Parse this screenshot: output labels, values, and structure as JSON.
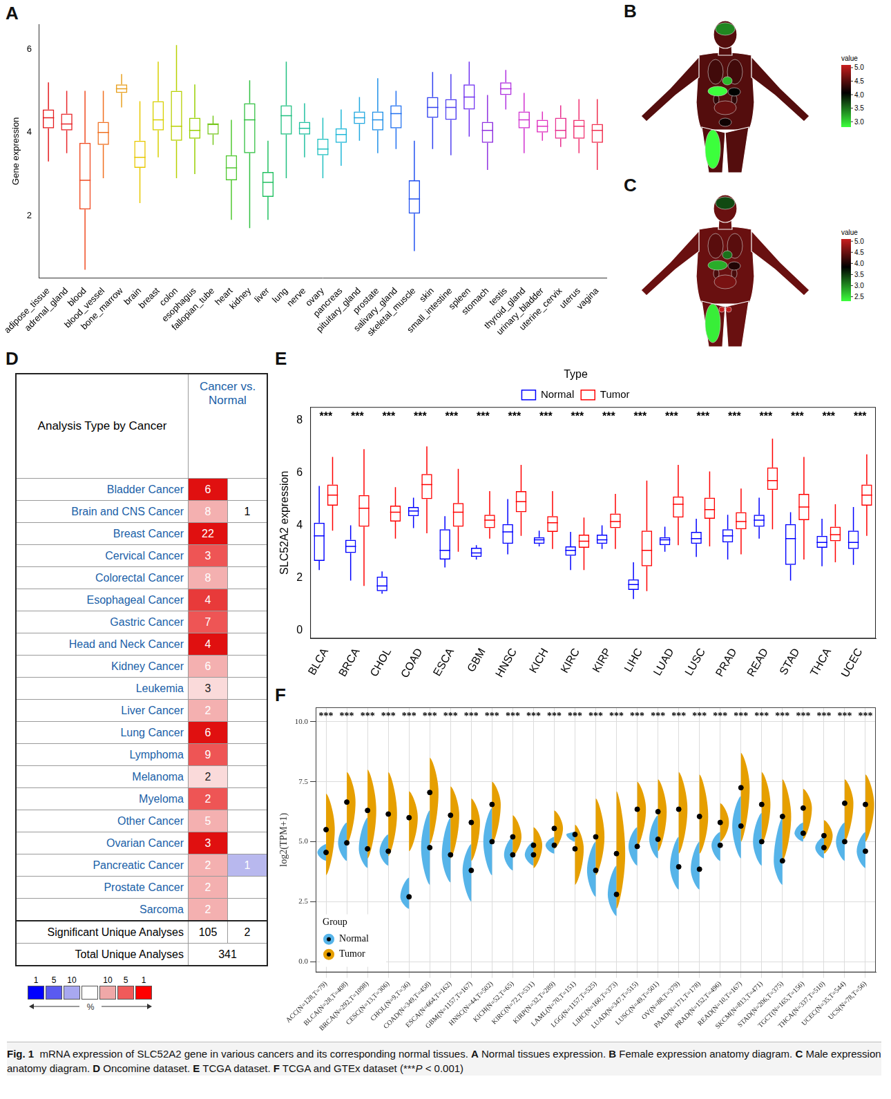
{
  "chart_data": [
    {
      "panel": "A",
      "type": "boxplot",
      "y_label": "Gene expression",
      "categories": [
        "adipose_tissue",
        "adrenal_gland",
        "blood",
        "blood_vessel",
        "bone_marrow",
        "brain",
        "breast",
        "colon",
        "esophagus",
        "fallopian_tube",
        "heart",
        "kidney",
        "liver",
        "lung",
        "nerve",
        "ovary",
        "pancreas",
        "pituitary_gland",
        "prostate",
        "salivary_gland",
        "skeletal_muscle",
        "skin",
        "small_intestine",
        "spleen",
        "stomach",
        "testis",
        "thyroid_gland",
        "urinary_bladder",
        "uterine_cervix",
        "uterus",
        "vagina"
      ],
      "colors": [
        "#e41a1c",
        "#e8262a",
        "#f04a20",
        "#f07020",
        "#e8a020",
        "#e8c800",
        "#d8d000",
        "#b8d000",
        "#98d000",
        "#78c820",
        "#50c830",
        "#30c040",
        "#20c060",
        "#20c080",
        "#20c0a0",
        "#20c0c0",
        "#20b8d8",
        "#20a8e0",
        "#2090e8",
        "#2070f0",
        "#2050f0",
        "#3040f0",
        "#5040f0",
        "#7030f0",
        "#9030e0",
        "#b030e0",
        "#d030d0",
        "#e030c0",
        "#e83090",
        "#f03070",
        "#f03050"
      ],
      "min": [
        3.3,
        3.5,
        0.7,
        2.9,
        4.6,
        2.3,
        3.4,
        2.9,
        3.0,
        3.7,
        1.9,
        1.7,
        1.9,
        2.9,
        3.4,
        2.9,
        3.2,
        3.8,
        3.5,
        3.6,
        1.15,
        3.6,
        3.45,
        3.9,
        3.1,
        4.55,
        3.5,
        3.8,
        3.65,
        3.5,
        3.1
      ],
      "q1": [
        4.1,
        4.05,
        2.15,
        3.7,
        4.95,
        3.15,
        4.05,
        3.8,
        3.85,
        3.95,
        2.85,
        3.5,
        2.45,
        3.95,
        3.95,
        3.45,
        3.75,
        4.2,
        4.05,
        4.1,
        2.05,
        4.35,
        4.3,
        4.55,
        3.75,
        4.9,
        4.1,
        4.0,
        3.85,
        3.85,
        3.75
      ],
      "median": [
        4.35,
        4.2,
        2.85,
        4.0,
        5.05,
        3.4,
        4.3,
        4.15,
        4.05,
        4.2,
        3.15,
        4.3,
        2.8,
        4.4,
        4.1,
        3.6,
        3.95,
        4.35,
        4.3,
        4.45,
        2.4,
        4.6,
        4.6,
        4.85,
        4.05,
        5.05,
        4.3,
        4.15,
        4.05,
        4.15,
        4.05
      ],
      "q3": [
        4.55,
        4.45,
        3.75,
        4.25,
        5.15,
        3.8,
        4.75,
        5.0,
        4.35,
        4.2,
        3.45,
        4.7,
        3.05,
        4.65,
        4.25,
        3.85,
        4.1,
        4.5,
        4.5,
        4.65,
        2.85,
        4.85,
        4.8,
        5.15,
        4.25,
        5.2,
        4.5,
        4.3,
        4.35,
        4.3,
        4.2
      ],
      "max": [
        5.2,
        5.0,
        5.0,
        5.0,
        5.4,
        4.75,
        5.7,
        6.1,
        5.15,
        4.4,
        4.3,
        5.25,
        3.8,
        5.7,
        4.7,
        4.35,
        4.55,
        4.85,
        5.3,
        5.0,
        3.8,
        5.45,
        5.4,
        5.7,
        4.9,
        5.5,
        4.95,
        4.5,
        4.65,
        4.8,
        4.8
      ],
      "ylim": [
        0.5,
        6.6
      ],
      "yticks": [
        2,
        4,
        6
      ],
      "grid": false
    },
    {
      "panel": "E",
      "type": "boxplot",
      "y_label": "SLC52A2 expression",
      "legend": "top",
      "legend_title": "Type",
      "grid": false,
      "categories": [
        "BLCA",
        "BRCA",
        "CHOL",
        "COAD",
        "ESCA",
        "GBM",
        "HNSC",
        "KICH",
        "KIRC",
        "KIRP",
        "LIHC",
        "LUAD",
        "LUSC",
        "PRAD",
        "READ",
        "STAD",
        "THCA",
        "UCEC"
      ],
      "significance": [
        "***",
        "***",
        "***",
        "***",
        "***",
        "***",
        "***",
        "***",
        "***",
        "***",
        "***",
        "***",
        "***",
        "***",
        "***",
        "***",
        "***",
        "***"
      ],
      "series": [
        {
          "name": "Normal",
          "color": "#0000ff",
          "min": [
            2.3,
            1.9,
            1.4,
            3.9,
            2.4,
            2.7,
            2.9,
            3.2,
            2.3,
            3.1,
            1.2,
            3.0,
            2.8,
            2.7,
            3.5,
            1.9,
            2.45,
            2.5
          ],
          "q1": [
            2.65,
            2.95,
            1.5,
            4.35,
            2.7,
            2.8,
            3.3,
            3.3,
            2.85,
            3.3,
            1.55,
            3.25,
            3.3,
            3.35,
            3.95,
            2.5,
            3.15,
            3.1
          ],
          "median": [
            3.6,
            3.2,
            1.7,
            4.55,
            3.05,
            2.95,
            3.75,
            3.45,
            3.05,
            3.45,
            1.75,
            3.45,
            3.5,
            3.6,
            4.2,
            3.5,
            3.35,
            3.35
          ],
          "q3": [
            4.1,
            3.45,
            2.05,
            4.7,
            3.85,
            3.15,
            4.05,
            3.55,
            3.2,
            3.65,
            1.95,
            3.55,
            3.75,
            3.85,
            4.4,
            4.05,
            3.6,
            3.8
          ],
          "max": [
            5.5,
            4.0,
            2.25,
            5.05,
            4.35,
            3.25,
            5.0,
            3.8,
            3.75,
            4.0,
            2.6,
            3.95,
            4.25,
            4.4,
            5.05,
            4.5,
            4.25,
            4.7
          ]
        },
        {
          "name": "Tumor",
          "color": "#ff0000",
          "min": [
            3.8,
            1.7,
            3.5,
            3.7,
            3.0,
            3.5,
            3.6,
            3.1,
            2.3,
            3.1,
            1.5,
            3.25,
            3.2,
            2.9,
            3.85,
            2.7,
            2.6,
            3.6
          ],
          "q1": [
            4.75,
            3.95,
            4.15,
            5.0,
            3.95,
            3.9,
            4.5,
            3.75,
            3.15,
            3.9,
            2.45,
            4.3,
            4.25,
            3.85,
            5.35,
            4.2,
            3.4,
            4.75
          ],
          "median": [
            5.15,
            4.65,
            4.5,
            5.55,
            4.5,
            4.2,
            4.9,
            4.1,
            3.4,
            4.15,
            3.05,
            4.8,
            4.6,
            4.15,
            5.7,
            4.7,
            3.65,
            5.15
          ],
          "q3": [
            5.55,
            5.15,
            4.75,
            5.95,
            4.85,
            4.4,
            5.3,
            4.35,
            3.65,
            4.45,
            3.8,
            5.1,
            5.05,
            4.5,
            6.2,
            5.2,
            3.95,
            5.55
          ],
          "max": [
            6.6,
            6.9,
            5.45,
            7.0,
            6.15,
            5.3,
            6.3,
            5.3,
            4.3,
            5.2,
            5.7,
            6.3,
            6.05,
            5.4,
            7.3,
            6.6,
            4.8,
            6.7
          ]
        }
      ],
      "ylim": [
        -0.3,
        8.5
      ],
      "yticks": [
        0,
        2,
        4,
        6,
        8
      ]
    },
    {
      "panel": "F",
      "type": "violin",
      "y_label": "log2(TPM+1)",
      "legend": "lower left",
      "legend_title": "Group",
      "grid": true,
      "categories": [
        "ACC(N=128,T=79)",
        "BLCA(N=28,T=408)",
        "BRCA(N=292,T=1098)",
        "CESC(N=13,T=306)",
        "CHOL(N=9,T=36)",
        "COAD(N=349,T=458)",
        "ESCA(N=664,T=162)",
        "GBM(N=1157,T=167)",
        "HNSC(N=44,T=502)",
        "KICH(N=52,T=65)",
        "KIRC(N=72,T=531)",
        "KIRP(N=32,T=289)",
        "LAML(N=70,T=151)",
        "LGG(N=1157,T=525)",
        "LIHC(N=160,T=373)",
        "LUAD(N=347,T=515)",
        "LUSC(N=49,T=501)",
        "OV(N=88,T=379)",
        "PAAD(N=171,T=178)",
        "PRAD(N=152,T=496)",
        "READ(N=10,T=167)",
        "SKCM(N=813,T=471)",
        "STAD(N=206,T=375)",
        "TGCT(N=165,T=156)",
        "THCA(N=337,T=510)",
        "UCEC(N=35,T=544)",
        "UCS(N=78,T=56)"
      ],
      "significance": [
        "***",
        "***",
        "***",
        "***",
        "***",
        "***",
        "***",
        "***",
        "***",
        "***",
        "***",
        "***",
        "***",
        "***",
        "***",
        "***",
        "***",
        "***",
        "***",
        "***",
        "***",
        "***",
        "***",
        "***",
        "***",
        "***",
        "***"
      ],
      "series": [
        {
          "name": "Normal",
          "color": "#56b4e9",
          "mean": [
            4.55,
            4.95,
            4.7,
            4.6,
            2.7,
            4.75,
            4.45,
            3.8,
            5.0,
            4.45,
            4.45,
            4.85,
            5.3,
            3.8,
            2.8,
            4.8,
            5.1,
            3.95,
            3.85,
            4.85,
            5.65,
            5.0,
            4.2,
            5.35,
            4.75,
            5.0,
            4.6
          ],
          "min": [
            4.2,
            4.2,
            3.9,
            4.0,
            2.2,
            3.2,
            3.3,
            2.5,
            3.6,
            3.8,
            4.0,
            4.5,
            5.0,
            2.7,
            1.9,
            4.0,
            4.3,
            3.0,
            3.0,
            4.2,
            4.3,
            4.0,
            3.2,
            5.0,
            4.3,
            4.2,
            3.9
          ],
          "max": [
            4.9,
            5.8,
            6.0,
            5.3,
            3.5,
            6.3,
            6.0,
            4.9,
            6.4,
            5.2,
            5.0,
            5.2,
            5.4,
            5.0,
            4.0,
            5.6,
            6.1,
            5.2,
            5.0,
            5.4,
            6.9,
            6.2,
            6.0,
            5.8,
            5.2,
            5.8,
            5.4
          ]
        },
        {
          "name": "Tumor",
          "color": "#e69f00",
          "mean": [
            5.5,
            6.65,
            6.3,
            6.15,
            6.0,
            7.05,
            6.1,
            5.8,
            6.55,
            5.2,
            4.85,
            5.55,
            4.7,
            5.2,
            4.5,
            6.35,
            6.25,
            6.35,
            6.05,
            5.8,
            7.25,
            6.55,
            6.05,
            6.4,
            5.25,
            6.6,
            6.55
          ],
          "min": [
            3.6,
            4.9,
            4.3,
            4.4,
            4.6,
            4.9,
            4.3,
            4.2,
            4.9,
            4.4,
            3.9,
            4.7,
            3.2,
            3.6,
            2.2,
            4.8,
            4.6,
            4.5,
            4.5,
            5.0,
            5.0,
            4.9,
            4.2,
            5.1,
            4.5,
            5.0,
            5.0
          ],
          "max": [
            7.0,
            7.9,
            8.0,
            7.9,
            7.1,
            8.5,
            7.3,
            6.8,
            7.5,
            6.1,
            5.6,
            6.3,
            5.7,
            6.8,
            7.1,
            7.5,
            7.6,
            7.9,
            7.8,
            6.6,
            8.7,
            7.9,
            7.6,
            7.2,
            5.9,
            7.6,
            7.8
          ]
        }
      ],
      "ylim": [
        -0.45,
        10.6
      ],
      "yticks": [
        {
          "value": 0,
          "label": "0.0"
        },
        {
          "value": 2.5,
          "label": "2.5"
        },
        {
          "value": 5,
          "label": "5.0"
        },
        {
          "value": 7.5,
          "label": "7.5"
        },
        {
          "value": 10,
          "label": "10.0"
        }
      ]
    }
  ],
  "diagrams": [
    {
      "panel": "B",
      "colorbar": {
        "title": "value",
        "range": [
          2.8,
          5.1
        ],
        "ticks": [
          {
            "value": 3,
            "label": "3.0"
          },
          {
            "value": 3.5,
            "label": "3.5"
          },
          {
            "value": 4,
            "label": "4.0"
          },
          {
            "value": 4.5,
            "label": "4.5"
          },
          {
            "value": 5,
            "label": "5.0"
          }
        ]
      },
      "organ_values": {
        "body": 4.5,
        "brain": 3.4,
        "kidney": 4.3,
        "lung": 4.4,
        "heart": 3.15,
        "liver": 2.8,
        "stomach": 4.05,
        "small_intestine": 4.6,
        "skeletal_muscle": 2.4,
        "uterus": 4.15
      }
    },
    {
      "panel": "C",
      "colorbar": {
        "title": "value",
        "range": [
          2.3,
          5.1
        ],
        "ticks": [
          {
            "value": 2.5,
            "label": "2.5"
          },
          {
            "value": 3,
            "label": "3.0"
          },
          {
            "value": 3.5,
            "label": "3.5"
          },
          {
            "value": 4,
            "label": "4.0"
          },
          {
            "value": 4.5,
            "label": "4.5"
          },
          {
            "value": 5,
            "label": "5.0"
          }
        ]
      },
      "organ_values": {
        "body": 4.5,
        "brain": 3.4,
        "kidney": 4.3,
        "lung": 4.4,
        "heart": 3.15,
        "liver": 2.8,
        "stomach": 4.05,
        "small_intestine": 4.6,
        "skeletal_muscle": 2.4,
        "testis": 5.05
      }
    }
  ],
  "table": {
    "panel": "D",
    "header": {
      "row_label": "Analysis Type by Cancer",
      "column": "Cancer vs. Normal"
    },
    "rows": [
      {
        "cancer": "Bladder Cancer",
        "up": 6,
        "down": null,
        "up_color": "#e01010"
      },
      {
        "cancer": "Brain and CNS Cancer",
        "up": 8,
        "down": 1,
        "up_color": "#f4b0b0"
      },
      {
        "cancer": "Breast Cancer",
        "up": 22,
        "down": null,
        "up_color": "#e01010"
      },
      {
        "cancer": "Cervical Cancer",
        "up": 3,
        "down": null,
        "up_color": "#ee5555"
      },
      {
        "cancer": "Colorectal Cancer",
        "up": 8,
        "down": null,
        "up_color": "#f4b0b0"
      },
      {
        "cancer": "Esophageal Cancer",
        "up": 4,
        "down": null,
        "up_color": "#e83a3a"
      },
      {
        "cancer": "Gastric Cancer",
        "up": 7,
        "down": null,
        "up_color": "#ee5555"
      },
      {
        "cancer": "Head and Neck Cancer",
        "up": 4,
        "down": null,
        "up_color": "#e01010"
      },
      {
        "cancer": "Kidney Cancer",
        "up": 6,
        "down": null,
        "up_color": "#f4b0b0"
      },
      {
        "cancer": "Leukemia",
        "up": 3,
        "down": null,
        "up_color": "#fadada"
      },
      {
        "cancer": "Liver Cancer",
        "up": 2,
        "down": null,
        "up_color": "#f4b0b0"
      },
      {
        "cancer": "Lung Cancer",
        "up": 6,
        "down": null,
        "up_color": "#e01010"
      },
      {
        "cancer": "Lymphoma",
        "up": 9,
        "down": null,
        "up_color": "#ee5555"
      },
      {
        "cancer": "Melanoma",
        "up": 2,
        "down": null,
        "up_color": "#fadada"
      },
      {
        "cancer": "Myeloma",
        "up": 2,
        "down": null,
        "up_color": "#ee5555"
      },
      {
        "cancer": "Other Cancer",
        "up": 5,
        "down": null,
        "up_color": "#f4b0b0"
      },
      {
        "cancer": "Ovarian Cancer",
        "up": 3,
        "down": null,
        "up_color": "#e01010"
      },
      {
        "cancer": "Pancreatic Cancer",
        "up": 2,
        "down": 1,
        "up_color": "#f4b0b0",
        "down_color": "#b8b8ee"
      },
      {
        "cancer": "Prostate Cancer",
        "up": 2,
        "down": null,
        "up_color": "#f4b0b0"
      },
      {
        "cancer": "Sarcoma",
        "up": 2,
        "down": null,
        "up_color": "#f4b0b0"
      }
    ],
    "footer": [
      {
        "label": "Significant Unique Analyses",
        "up": 105,
        "down": 2
      },
      {
        "label": "Total Unique Analyses",
        "total": 341
      }
    ],
    "key": {
      "labels": [
        "1",
        "5",
        "10",
        null,
        "10",
        "5",
        "1"
      ],
      "colors": [
        "#0000ff",
        "#5a5af0",
        "#a8a8f0",
        "#ffffff",
        "#f0a8a8",
        "#f05a5a",
        "#ff0000"
      ],
      "unit": "%"
    }
  },
  "caption": [
    {
      "text": "Fig. 1",
      "bold": true
    },
    {
      "text": "  mRNA expression of SLC52A2 gene in various cancers and its corresponding normal tissues. "
    },
    {
      "text": "A",
      "bold": true
    },
    {
      "text": " Normal tissues expression. "
    },
    {
      "text": "B",
      "bold": true
    },
    {
      "text": " Female expression anatomy diagram. "
    },
    {
      "text": "C",
      "bold": true
    },
    {
      "text": " Male expression anatomy diagram. "
    },
    {
      "text": "D",
      "bold": true
    },
    {
      "text": " Oncomine dataset. "
    },
    {
      "text": "E",
      "bold": true
    },
    {
      "text": " TCGA dataset. "
    },
    {
      "text": "F",
      "bold": true
    },
    {
      "text": " TCGA and GTEx dataset (***"
    },
    {
      "text": "P",
      "italic": true
    },
    {
      "text": " < 0.001)"
    }
  ]
}
